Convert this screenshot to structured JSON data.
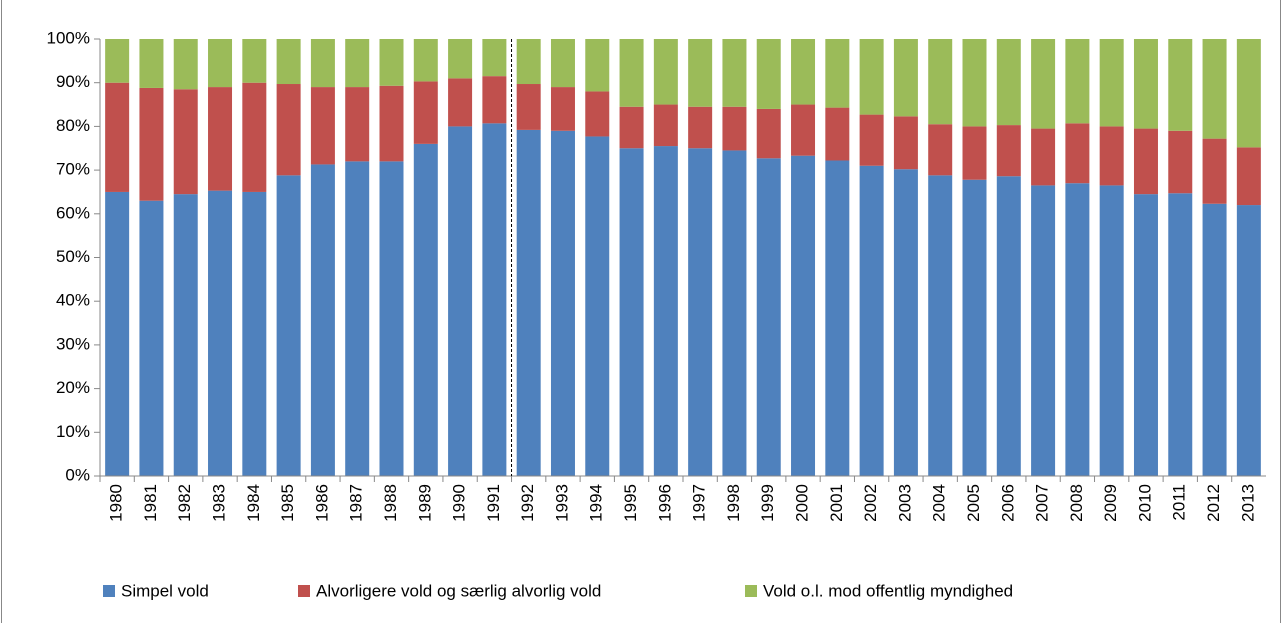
{
  "chart_data": {
    "type": "stacked_bar",
    "categories": [
      "1980",
      "1981",
      "1982",
      "1983",
      "1984",
      "1985",
      "1986",
      "1987",
      "1988",
      "1989",
      "1990",
      "1991",
      "1992",
      "1993",
      "1994",
      "1995",
      "1996",
      "1997",
      "1998",
      "1999",
      "2000",
      "2001",
      "2002",
      "2003",
      "2004",
      "2005",
      "2006",
      "2007",
      "2008",
      "2009",
      "2010",
      "2011",
      "2012",
      "2013"
    ],
    "series": [
      {
        "name": "Simpel vold",
        "color": "#4f81bd",
        "values": [
          65,
          63,
          64.5,
          65.3,
          65,
          68.8,
          71.3,
          72,
          72,
          76,
          80,
          80.7,
          79.2,
          79,
          77.7,
          75,
          75.5,
          75,
          74.5,
          72.7,
          73.3,
          72.2,
          71,
          70.2,
          68.8,
          67.8,
          68.6,
          66.5,
          67,
          66.5,
          64.5,
          64.7,
          62.3,
          62
        ]
      },
      {
        "name": "Alvorligere vold og særlig alvorlig vold",
        "color": "#c0504d",
        "values": [
          25,
          25.8,
          24,
          23.7,
          25,
          20.9,
          17.7,
          17,
          17.3,
          14.3,
          11,
          10.8,
          10.5,
          10,
          10.3,
          9.5,
          9.5,
          9.5,
          10,
          11.3,
          11.7,
          12.1,
          11.7,
          12.1,
          11.7,
          12.2,
          11.7,
          13,
          13.7,
          13.5,
          15,
          14.3,
          14.9,
          13.2
        ]
      },
      {
        "name": "Vold o.l. mod offentlig myndighed",
        "color": "#9bbb59",
        "values": [
          10,
          11.2,
          11.5,
          11,
          10,
          10.3,
          11,
          11,
          10.7,
          9.7,
          9,
          8.5,
          10.3,
          11,
          12,
          15.5,
          15,
          15.5,
          15.5,
          16,
          15,
          15.7,
          17.3,
          17.7,
          19.5,
          20,
          19.7,
          20.5,
          19.3,
          20,
          20.5,
          21,
          22.8,
          24.8
        ]
      }
    ],
    "ylim": [
      0,
      100
    ],
    "yticks": [
      {
        "value": 0,
        "label": "0%"
      },
      {
        "value": 10,
        "label": "10%"
      },
      {
        "value": 20,
        "label": "20%"
      },
      {
        "value": 30,
        "label": "30%"
      },
      {
        "value": 40,
        "label": "40%"
      },
      {
        "value": 50,
        "label": "50%"
      },
      {
        "value": 60,
        "label": "60%"
      },
      {
        "value": 70,
        "label": "70%"
      },
      {
        "value": 80,
        "label": "80%"
      },
      {
        "value": 90,
        "label": "90%"
      },
      {
        "value": 100,
        "label": "100%"
      }
    ],
    "grid": false,
    "legend": "bottom"
  }
}
